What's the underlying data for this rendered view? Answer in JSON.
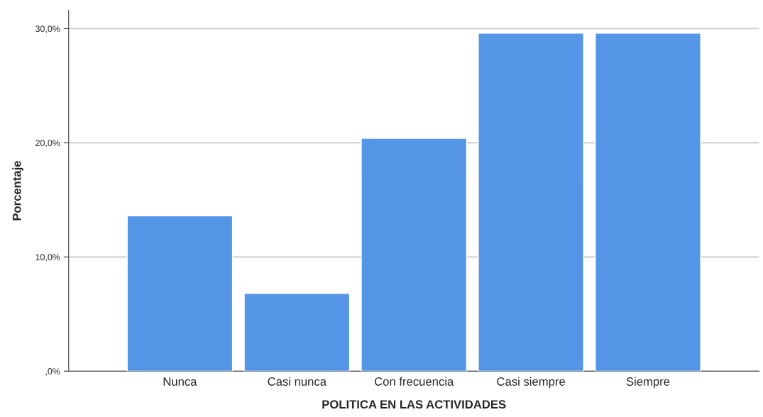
{
  "chart_data": {
    "type": "bar",
    "xlabel": "POLITICA EN LAS ACTIVIDADES",
    "ylabel": "Porcentaje",
    "categories": [
      "Nunca",
      "Casi nunca",
      "Con frecuencia",
      "Casi siempre",
      "Siempre"
    ],
    "values": [
      13.6,
      6.8,
      20.4,
      29.6,
      29.6
    ],
    "color": "#5595e5",
    "ylim": [
      0,
      31.6
    ],
    "yticks": [
      {
        "value": 0,
        "label": ",0%"
      },
      {
        "value": 10,
        "label": "10,0%"
      },
      {
        "value": 20,
        "label": "20,0%"
      },
      {
        "value": 30,
        "label": "30,0%"
      }
    ],
    "grid": "y"
  }
}
